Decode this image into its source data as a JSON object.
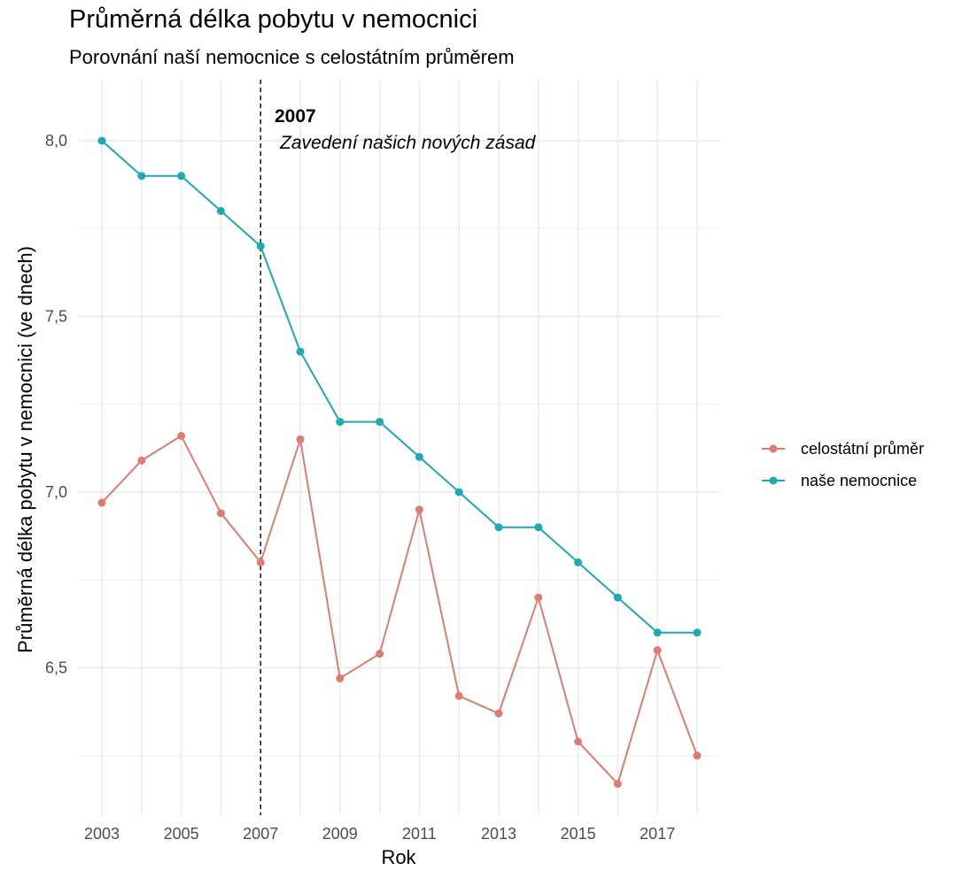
{
  "chart_data": {
    "type": "line",
    "title": "Průměrná délka pobytu v nemocnici",
    "subtitle": "Porovnání naší nemocnice s celostátním průměrem",
    "xlabel": "Rok",
    "ylabel": "Průměrná délka pobytu v nemocnici (ve dnech)",
    "x": [
      2003,
      2004,
      2005,
      2006,
      2007,
      2008,
      2009,
      2010,
      2011,
      2012,
      2013,
      2014,
      2015,
      2016,
      2017,
      2018
    ],
    "x_ticks": [
      2003,
      2005,
      2007,
      2009,
      2011,
      2013,
      2015,
      2017
    ],
    "x_tick_labels": [
      "2003",
      "2005",
      "2007",
      "2009",
      "2011",
      "2013",
      "2015",
      "2017"
    ],
    "y_ticks": [
      6.5,
      7.0,
      7.5,
      8.0
    ],
    "y_tick_labels": [
      "6,5",
      "7,0",
      "7,5",
      "8,0"
    ],
    "xlim": [
      2002.9,
      2018.35
    ],
    "ylim": [
      6.12,
      8.18
    ],
    "grid": true,
    "legend_position": "right",
    "series": [
      {
        "name": "celostátní průměr",
        "color": "#e07b72",
        "values": [
          6.97,
          7.09,
          7.16,
          6.94,
          6.8,
          7.15,
          6.47,
          6.54,
          6.95,
          6.42,
          6.37,
          6.7,
          6.29,
          6.17,
          6.55,
          6.25
        ]
      },
      {
        "name": "naše nemocnice",
        "color": "#1aabb3",
        "values": [
          8.0,
          7.9,
          7.9,
          7.8,
          7.7,
          7.4,
          7.2,
          7.2,
          7.1,
          7.0,
          6.9,
          6.9,
          6.8,
          6.7,
          6.6,
          6.6
        ]
      }
    ],
    "annotation": {
      "x": 2007,
      "label_bold": "2007",
      "label_italic": "Zavedení našich nových zásad"
    }
  }
}
